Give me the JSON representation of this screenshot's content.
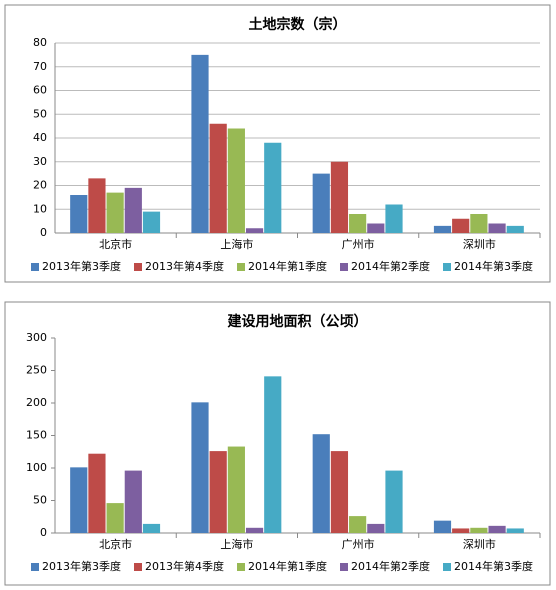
{
  "chart_data": [
    {
      "type": "bar",
      "title": "土地宗数（宗）",
      "categories": [
        "北京市",
        "上海市",
        "广州市",
        "深圳市"
      ],
      "series": [
        {
          "name": "2013年第3季度",
          "color": "#4a7ebb",
          "values": [
            16,
            75,
            25,
            3
          ]
        },
        {
          "name": "2013年第4季度",
          "color": "#be4b48",
          "values": [
            23,
            46,
            30,
            6
          ]
        },
        {
          "name": "2014年第1季度",
          "color": "#98b954",
          "values": [
            17,
            44,
            8,
            8
          ]
        },
        {
          "name": "2014年第2季度",
          "color": "#7d5fa0",
          "values": [
            19,
            2,
            4,
            4
          ]
        },
        {
          "name": "2014年第3季度",
          "color": "#46aac5",
          "values": [
            9,
            38,
            12,
            3
          ]
        }
      ],
      "ylim": [
        0,
        80
      ],
      "yticks": [
        0,
        10,
        20,
        30,
        40,
        50,
        60,
        70,
        80
      ],
      "grid": true,
      "legend": "bottom"
    },
    {
      "type": "bar",
      "title": "建设用地面积（公顷）",
      "categories": [
        "北京市",
        "上海市",
        "广州市",
        "深圳市"
      ],
      "series": [
        {
          "name": "2013年第3季度",
          "color": "#4a7ebb",
          "values": [
            101,
            201,
            152,
            19
          ]
        },
        {
          "name": "2013年第4季度",
          "color": "#be4b48",
          "values": [
            122,
            126,
            126,
            7
          ]
        },
        {
          "name": "2014年第1季度",
          "color": "#98b954",
          "values": [
            46,
            133,
            26,
            8
          ]
        },
        {
          "name": "2014年第2季度",
          "color": "#7d5fa0",
          "values": [
            96,
            8,
            14,
            11
          ]
        },
        {
          "name": "2014年第3季度",
          "color": "#46aac5",
          "values": [
            14,
            241,
            96,
            7
          ]
        }
      ],
      "ylim": [
        0,
        300
      ],
      "yticks": [
        0,
        50,
        100,
        150,
        200,
        250,
        300
      ],
      "grid": false,
      "legend": "bottom"
    }
  ]
}
